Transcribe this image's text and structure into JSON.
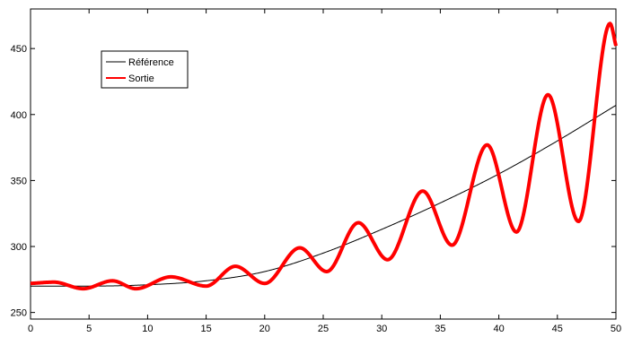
{
  "chart_data": {
    "type": "line",
    "xlim": [
      0,
      50
    ],
    "ylim": [
      245,
      480
    ],
    "x_ticks": [
      0,
      5,
      10,
      15,
      20,
      25,
      30,
      35,
      40,
      45,
      50
    ],
    "y_ticks": [
      250,
      300,
      350,
      400,
      450
    ],
    "grid": false,
    "legend_position": "top-left",
    "series": [
      {
        "name": "Référence",
        "color": "#000000",
        "x": [
          0,
          5,
          10,
          15,
          20,
          25,
          30,
          35,
          40,
          45,
          50
        ],
        "y": [
          270,
          270,
          271,
          274,
          281,
          295,
          313,
          333,
          355,
          380,
          407
        ]
      },
      {
        "name": "Sortie",
        "color": "#ff0000",
        "x": [
          0,
          2,
          4.5,
          7,
          9,
          12,
          15,
          17.5,
          20,
          23,
          25.3,
          28,
          30.5,
          33.5,
          36,
          39,
          41.5,
          44.2,
          46.8,
          49.5,
          50
        ],
        "y": [
          272,
          273,
          268,
          274,
          268,
          277,
          270,
          285,
          272,
          299,
          281,
          318,
          290,
          342,
          301,
          377,
          311,
          415,
          319,
          469,
          452
        ]
      }
    ]
  }
}
